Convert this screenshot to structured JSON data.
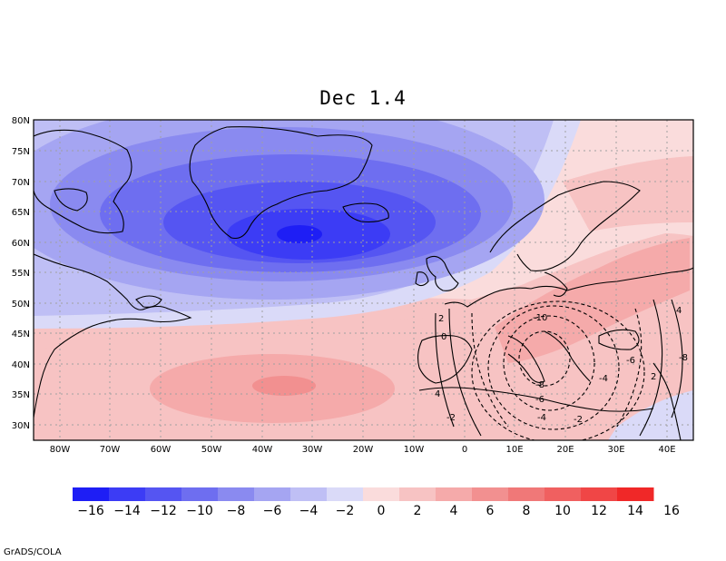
{
  "title": "Dec 1.4",
  "credit": "GrADS/COLA",
  "lat_labels": [
    "80N",
    "75N",
    "70N",
    "65N",
    "60N",
    "55N",
    "50N",
    "45N",
    "40N",
    "35N",
    "30N"
  ],
  "lon_labels": [
    "80W",
    "70W",
    "60W",
    "50W",
    "40W",
    "30W",
    "20W",
    "10W",
    "0",
    "10E",
    "20E",
    "30E",
    "40E"
  ],
  "colorbar": {
    "colors": [
      "#1e1ef5",
      "#3c3cf5",
      "#5555f2",
      "#6e6ef0",
      "#8a8af0",
      "#a5a5f2",
      "#bfbff5",
      "#dadaf8",
      "#fadcdc",
      "#f7c3c3",
      "#f5aaaa",
      "#f29090",
      "#f07878",
      "#f06060",
      "#f04646",
      "#f02828"
    ],
    "labels": [
      "-16",
      "-14",
      "-12",
      "-10",
      "-8",
      "-6",
      "-4",
      "-2",
      "0",
      "2",
      "4",
      "6",
      "8",
      "10",
      "12",
      "14",
      "16"
    ]
  },
  "contour_labels": [
    "-10",
    "-8",
    "-6",
    "-4",
    "-2",
    "-2",
    "0",
    "2",
    "4",
    "2",
    "4",
    "-4",
    "-6",
    "-8"
  ],
  "colors": {
    "land_outline": "#000000",
    "grid": "#a0a0a0"
  }
}
